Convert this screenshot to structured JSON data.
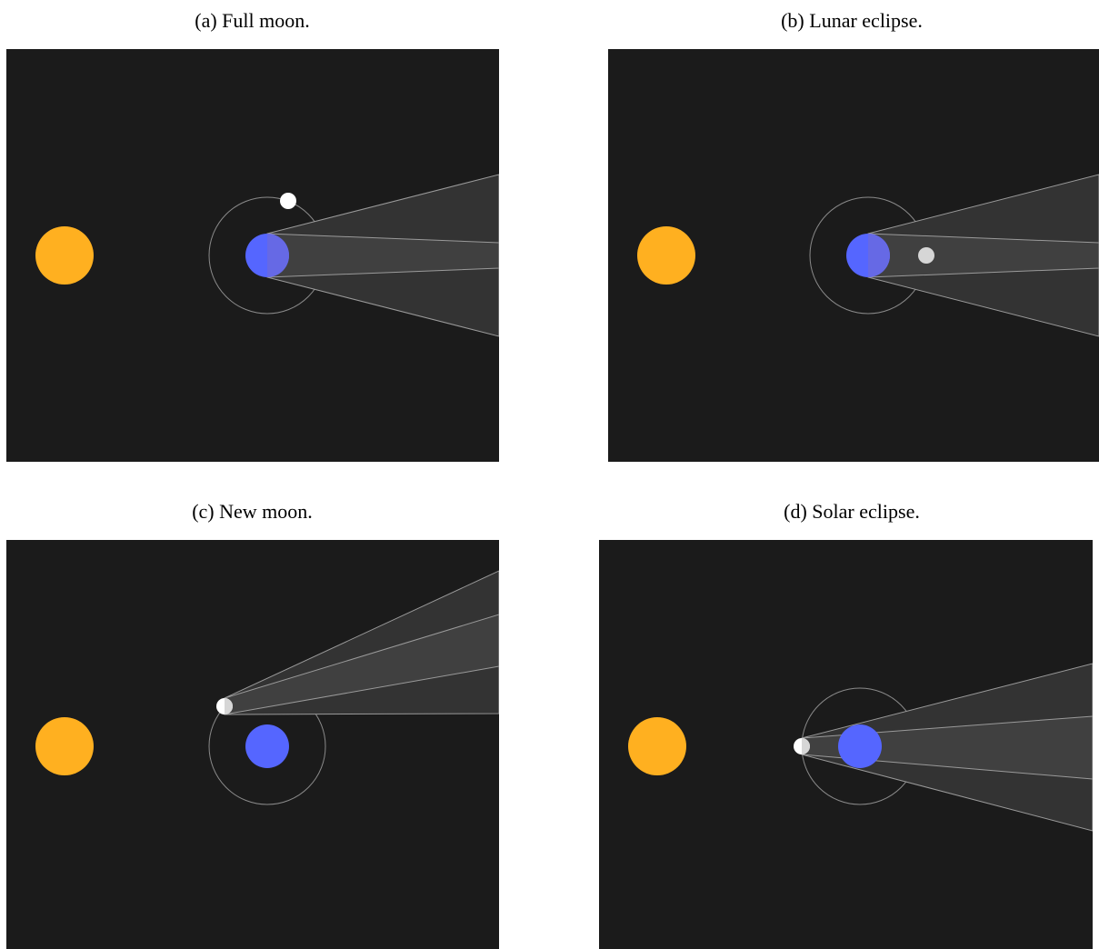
{
  "figure": {
    "panels": [
      {
        "id": "a",
        "caption": "(a) Full moon."
      },
      {
        "id": "b",
        "caption": "(b) Lunar eclipse."
      },
      {
        "id": "c",
        "caption": "(c) New moon."
      },
      {
        "id": "d",
        "caption": "(d) Solar eclipse."
      }
    ]
  },
  "colors": {
    "background": "#1b1b1b",
    "sun": "#ffb020",
    "earth": "#5566ff",
    "moon_lit": "#ffffff",
    "moon_dim": "#d6d6d6",
    "orbit": "#8a8a8a",
    "shadow_outer": "#333333",
    "shadow_inner": "#404040",
    "shadow_edge": "#9a9a9a"
  }
}
